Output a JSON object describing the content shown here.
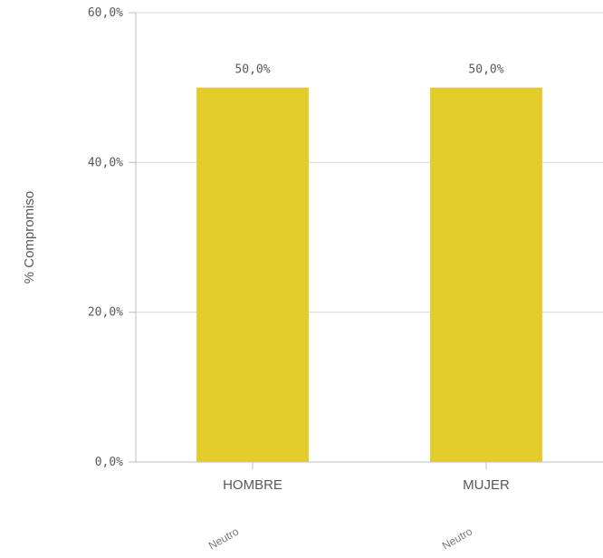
{
  "chart_data": {
    "type": "bar",
    "title": "",
    "xlabel": "",
    "ylabel": "% Compromiso",
    "categories": [
      "HOMBRE",
      "MUJER"
    ],
    "category_sublabels": [
      "Neutro",
      "Neutro"
    ],
    "values": [
      50.0,
      50.0
    ],
    "value_labels": [
      "50,0%",
      "50,0%"
    ],
    "ylim": [
      0,
      60
    ],
    "yticks": [
      0,
      20,
      40,
      60
    ],
    "ytick_labels": [
      "0,0%",
      "20,0%",
      "40,0%",
      "60,0%"
    ],
    "grid": true,
    "bar_color": "#e3cc2b",
    "grid_color": "#d9d9d9",
    "axis_color": "#bfbfbf"
  }
}
